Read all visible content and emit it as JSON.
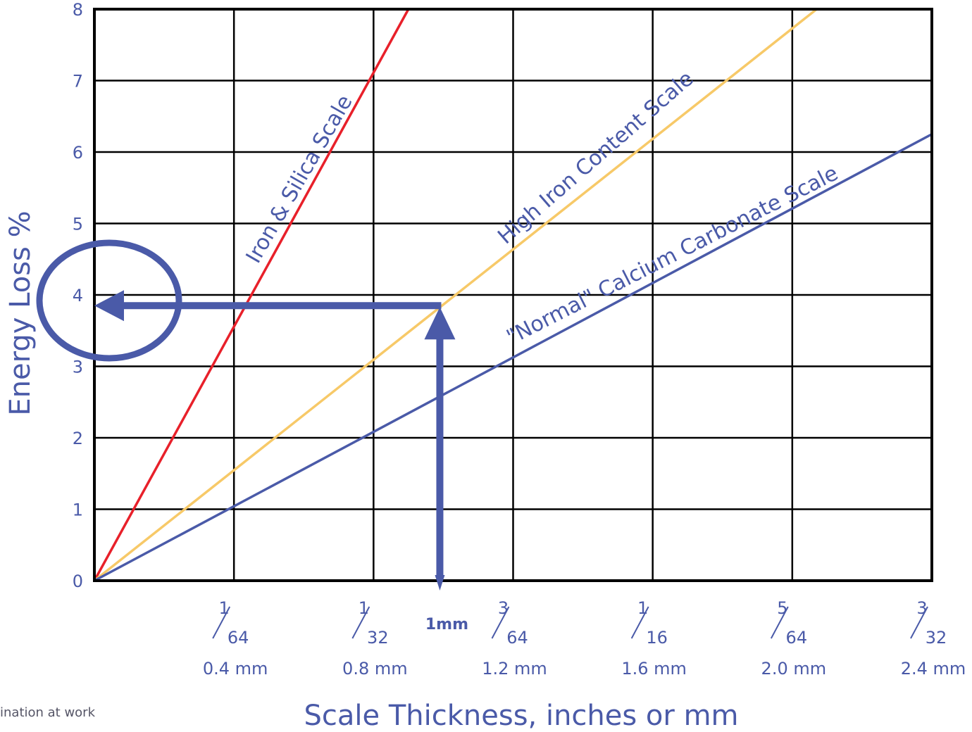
{
  "chart_data": {
    "type": "line",
    "title": "",
    "xlabel": "Scale Thickness, inches or mm",
    "ylabel": "Energy Loss %",
    "xlim": [
      0,
      2.4
    ],
    "ylim": [
      0,
      8
    ],
    "grid": true,
    "y_ticks": [
      "0",
      "1",
      "2",
      "3",
      "4",
      "5",
      "6",
      "7",
      "8"
    ],
    "x_ticks": [
      {
        "value": 0.4,
        "num": "1",
        "den": "64",
        "mm": "0.4 mm"
      },
      {
        "value": 0.8,
        "num": "1",
        "den": "32",
        "mm": "0.8 mm"
      },
      {
        "value": 1.2,
        "num": "3",
        "den": "64",
        "mm": "1.2 mm"
      },
      {
        "value": 1.6,
        "num": "1",
        "den": "16",
        "mm": "1.6 mm"
      },
      {
        "value": 2.0,
        "num": "5",
        "den": "64",
        "mm": "2.0 mm"
      },
      {
        "value": 2.4,
        "num": "3",
        "den": "32",
        "mm": "2.4 mm"
      }
    ],
    "series": [
      {
        "name": "Iron & Silica Scale",
        "color": "#e8202a",
        "x": [
          0,
          0.9
        ],
        "y": [
          0,
          8
        ]
      },
      {
        "name": "High Iron Content Scale",
        "color": "#f7c968",
        "x": [
          0,
          2.07
        ],
        "y": [
          0,
          8
        ]
      },
      {
        "name": "\"Normal\" Calcium Carbonate Scale",
        "color": "#4a5aa8",
        "x": [
          0,
          2.4
        ],
        "y": [
          0,
          6.25
        ]
      }
    ],
    "annotation": {
      "marker_label": "1mm",
      "x": 0.99,
      "y": 3.85,
      "color": "#4a5aa8"
    }
  },
  "footer": {
    "tagline": "ination at work"
  }
}
